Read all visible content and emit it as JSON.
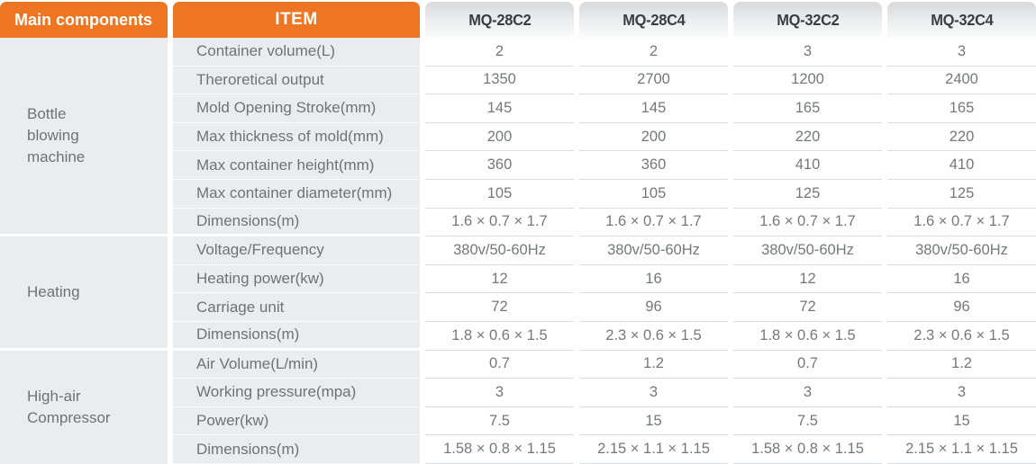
{
  "header": {
    "main_label": "Main components",
    "item_label": "ITEM",
    "models": [
      "MQ-28C2",
      "MQ-28C4",
      "MQ-32C2",
      "MQ-32C4"
    ]
  },
  "colors": {
    "accent_orange": "#EE7623",
    "header_text": "#FFFFFF",
    "model_header_text": "#3C3D3E",
    "panel_gray": "#EAEDEF",
    "row_line": "#D9DDE1",
    "body_text": "#74787B"
  },
  "sections": [
    {
      "group": "Bottle blowing machine",
      "rows": [
        {
          "item": "Container volume(L)",
          "values": [
            "2",
            "2",
            "3",
            "3"
          ]
        },
        {
          "item": "Theroretical output",
          "values": [
            "1350",
            "2700",
            "1200",
            "2400"
          ]
        },
        {
          "item": "Mold Opening Stroke(mm)",
          "values": [
            "145",
            "145",
            "165",
            "165"
          ]
        },
        {
          "item": "Max thickness of mold(mm)",
          "values": [
            "200",
            "200",
            "220",
            "220"
          ]
        },
        {
          "item": "Max container height(mm)",
          "values": [
            "360",
            "360",
            "410",
            "410"
          ]
        },
        {
          "item": "Max container diameter(mm)",
          "values": [
            "105",
            "105",
            "125",
            "125"
          ]
        },
        {
          "item": "Dimensions(m)",
          "values": [
            "1.6 × 0.7 × 1.7",
            "1.6 × 0.7 × 1.7",
            "1.6 × 0.7 × 1.7",
            "1.6 × 0.7 × 1.7"
          ]
        }
      ]
    },
    {
      "group": "Heating",
      "rows": [
        {
          "item": "Voltage/Frequency",
          "values": [
            "380v/50-60Hz",
            "380v/50-60Hz",
            "380v/50-60Hz",
            "380v/50-60Hz"
          ]
        },
        {
          "item": "Heating power(kw)",
          "values": [
            "12",
            "16",
            "12",
            "16"
          ]
        },
        {
          "item": "Carriage unit",
          "values": [
            "72",
            "96",
            "72",
            "96"
          ]
        },
        {
          "item": "Dimensions(m)",
          "values": [
            "1.8 × 0.6 × 1.5",
            "2.3 × 0.6 × 1.5",
            "1.8 × 0.6 × 1.5",
            "2.3 × 0.6 × 1.5"
          ]
        }
      ]
    },
    {
      "group": "High-air Compressor",
      "rows": [
        {
          "item": "Air Volume(L/min)",
          "values": [
            "0.7",
            "1.2",
            "0.7",
            "1.2"
          ]
        },
        {
          "item": "Working pressure(mpa)",
          "values": [
            "3",
            "3",
            "3",
            "3"
          ]
        },
        {
          "item": "Power(kw)",
          "values": [
            "7.5",
            "15",
            "7.5",
            "15"
          ]
        },
        {
          "item": "Dimensions(m)",
          "values": [
            "1.58 × 0.8 × 1.15",
            "2.15 × 1.1 × 1.15",
            "1.58 × 0.8 × 1.15",
            "2.15 × 1.1 × 1.15"
          ]
        }
      ]
    }
  ]
}
